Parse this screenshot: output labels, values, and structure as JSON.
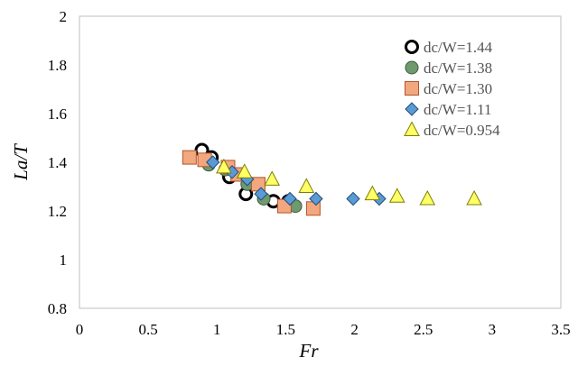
{
  "chart_data": {
    "type": "scatter",
    "title": "",
    "xlabel": "Fr",
    "ylabel": "La/T",
    "xlim": [
      0,
      3.5
    ],
    "ylim": [
      0.8,
      2
    ],
    "xticks": [
      "0",
      "0.5",
      "1",
      "1.5",
      "2",
      "2.5",
      "3",
      "3.5"
    ],
    "yticks": [
      "0.8",
      "1",
      "1.2",
      "1.4",
      "1.6",
      "1.8",
      "2"
    ],
    "grid": false,
    "legend_position": "top-right",
    "series": [
      {
        "name": "dc/W=1.44",
        "marker": "circle-open",
        "color": "#000000",
        "fill": "#ffffff",
        "points": [
          [
            0.89,
            1.45
          ],
          [
            0.96,
            1.42
          ],
          [
            1.09,
            1.34
          ],
          [
            1.21,
            1.27
          ],
          [
            1.41,
            1.24
          ],
          [
            1.52,
            1.24
          ]
        ]
      },
      {
        "name": "dc/W=1.38",
        "marker": "circle",
        "color": "#3b5b3b",
        "fill": "#6e9a6e",
        "points": [
          [
            0.94,
            1.39
          ],
          [
            1.06,
            1.37
          ],
          [
            1.22,
            1.31
          ],
          [
            1.34,
            1.25
          ],
          [
            1.57,
            1.22
          ]
        ]
      },
      {
        "name": "dc/W=1.30",
        "marker": "square",
        "color": "#b2552c",
        "fill": "#f2a77e",
        "points": [
          [
            0.8,
            1.42
          ],
          [
            0.91,
            1.41
          ],
          [
            1.08,
            1.38
          ],
          [
            1.15,
            1.35
          ],
          [
            1.3,
            1.31
          ],
          [
            1.49,
            1.22
          ],
          [
            1.7,
            1.21
          ]
        ]
      },
      {
        "name": "dc/W=1.11",
        "marker": "diamond",
        "color": "#1f4e79",
        "fill": "#5b9bd5",
        "points": [
          [
            0.97,
            1.4
          ],
          [
            1.11,
            1.36
          ],
          [
            1.22,
            1.33
          ],
          [
            1.32,
            1.27
          ],
          [
            1.53,
            1.25
          ],
          [
            1.72,
            1.25
          ],
          [
            1.99,
            1.25
          ],
          [
            2.18,
            1.25
          ]
        ]
      },
      {
        "name": "dc/W=0.954",
        "marker": "triangle",
        "color": "#7f7f00",
        "fill": "#ffff66",
        "points": [
          [
            1.05,
            1.38
          ],
          [
            1.2,
            1.36
          ],
          [
            1.4,
            1.33
          ],
          [
            1.65,
            1.3
          ],
          [
            2.13,
            1.27
          ],
          [
            2.31,
            1.26
          ],
          [
            2.53,
            1.25
          ],
          [
            2.87,
            1.25
          ]
        ]
      }
    ]
  }
}
